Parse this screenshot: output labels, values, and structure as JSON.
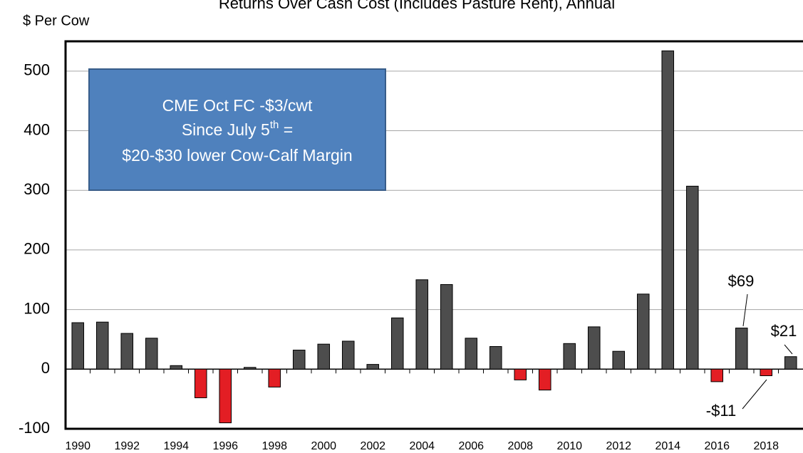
{
  "chart_data": {
    "type": "bar",
    "title": "Returns Over Cash Cost (Includes Pasture Rent), Annual",
    "y_label": "$ Per Cow",
    "categories": [
      "1990",
      null,
      "1992",
      null,
      "1994",
      null,
      "1996",
      null,
      "1998",
      null,
      "2000",
      null,
      "2002",
      null,
      "2004",
      null,
      "2006",
      null,
      "2008",
      null,
      "2010",
      null,
      "2012",
      null,
      "2014",
      null,
      "2016",
      null,
      "2018",
      null
    ],
    "values": [
      78,
      79,
      60,
      52,
      6,
      -48,
      -90,
      3,
      -30,
      32,
      42,
      47,
      8,
      86,
      150,
      142,
      52,
      38,
      -18,
      -35,
      43,
      71,
      30,
      126,
      534,
      307,
      -21,
      69,
      -11,
      21
    ],
    "value_labels": [
      null,
      null,
      null,
      null,
      null,
      null,
      null,
      null,
      null,
      null,
      null,
      null,
      null,
      null,
      null,
      null,
      null,
      null,
      null,
      null,
      null,
      null,
      null,
      null,
      null,
      null,
      null,
      "$69",
      "-$11",
      "$21"
    ],
    "color": "#4d4d4d",
    "negative_color": "#e31e24",
    "ylim": [
      -100,
      550
    ],
    "yticks": [
      -100,
      0,
      100,
      200,
      300,
      400,
      500
    ],
    "grid": true,
    "annotation": {
      "line1": "CME Oct FC -$3/cwt",
      "line2": [
        "Since July 5",
        "th",
        " ="
      ],
      "line3": "$20-$30 lower Cow-Calf Margin"
    }
  }
}
